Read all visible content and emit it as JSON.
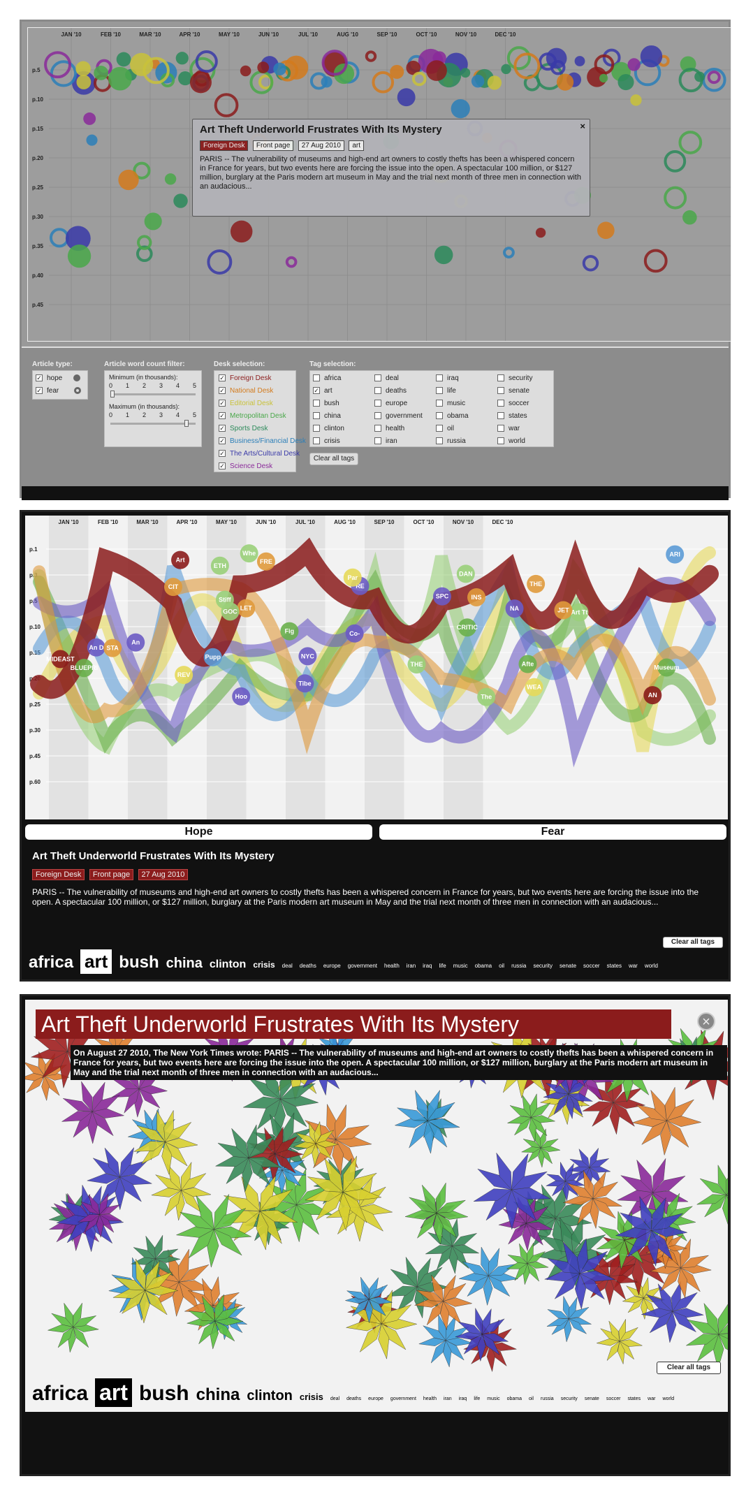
{
  "months": [
    "JAN '10",
    "FEB '10",
    "MAR '10",
    "APR '10",
    "MAY '10",
    "JUN '10",
    "JUL '10",
    "AUG '10",
    "SEP '10",
    "OCT '10",
    "NOV '10",
    "DEC '10"
  ],
  "p1_yticks": [
    "p.5",
    "p.10",
    "p.15",
    "p.20",
    "p.25",
    "p.30",
    "p.35",
    "p.40",
    "p.45"
  ],
  "p2_yticks": [
    "p.1",
    "p.3",
    "p.5",
    "p.10",
    "p.15",
    "p.20",
    "p.25",
    "p.30",
    "p.45",
    "p.60"
  ],
  "article": {
    "title": "Art Theft Underworld Frustrates With Its Mystery",
    "desk": "Foreign Desk",
    "page": "Front page",
    "date": "27 Aug 2010",
    "tag": "art",
    "close": "×",
    "snippet": "PARIS -- The vulnerability of museums and high-end art owners to costly thefts has been a whispered concern in France for years, but two events here are forcing the issue into the open. A spectacular 100 million, or $127 million, burglary at the Paris modern art museum in May and the trial next month of three men in connection with an audacious...",
    "long_snippet": "On August 27 2010, The New York Times wrote:  PARIS -- The vulnerability of museums and high-end art owners to costly thefts has been a whispered concern in France for years, but two events here are forcing the issue into the open. A spectacular 100 million, or $127 million, burglary at the Paris modern art museum in May and the trial next month of three men in connection with an audacious..."
  },
  "controls": {
    "article_type_label": "Article type:",
    "types": [
      "hope",
      "fear"
    ],
    "wordcount_label": "Article word count filter:",
    "min_label": "Minimum (in thousands):",
    "max_label": "Maximum (in thousands):",
    "ticks": [
      "0",
      "1",
      "2",
      "3",
      "4",
      "5"
    ],
    "desk_label": "Desk selection:",
    "desks": [
      {
        "name": "Foreign Desk",
        "color": "#8b1c1c"
      },
      {
        "name": "National Desk",
        "color": "#d37a1c"
      },
      {
        "name": "Editorial Desk",
        "color": "#c9c23a"
      },
      {
        "name": "Metropolitan Desk",
        "color": "#4aa84a"
      },
      {
        "name": "Sports Desk",
        "color": "#2c8a5a"
      },
      {
        "name": "Business/Financial Desk",
        "color": "#2c7fb8"
      },
      {
        "name": "The Arts/Cultural Desk",
        "color": "#3a3aa8"
      },
      {
        "name": "Science Desk",
        "color": "#8a2a9a"
      }
    ],
    "tag_label": "Tag selection:",
    "tags": [
      "africa",
      "deal",
      "iraq",
      "security",
      "art",
      "deaths",
      "life",
      "senate",
      "bush",
      "europe",
      "music",
      "soccer",
      "china",
      "government",
      "obama",
      "states",
      "clinton",
      "health",
      "oil",
      "war",
      "crisis",
      "iran",
      "russia",
      "world"
    ],
    "clear": "Clear all tags"
  },
  "hope_label": "Hope",
  "fear_label": "Fear",
  "tagcloud": [
    "africa",
    "art",
    "bush",
    "china",
    "clinton",
    "crisis",
    "deal",
    "deaths",
    "europe",
    "government",
    "health",
    "iran",
    "iraq",
    "life",
    "music",
    "obama",
    "oil",
    "russia",
    "security",
    "senate",
    "soccer",
    "states",
    "war",
    "world"
  ],
  "p2_bubble_labels": [
    "INS",
    "An D",
    "REV",
    "RE",
    "LET",
    "STA",
    "GOC",
    "ETH",
    "Par",
    "Whe",
    "Art",
    "THE",
    "Art Tt",
    "Fig",
    "CRITIC",
    "BLUEPRI",
    "MIDEAST",
    "Museum",
    "Stiff",
    "Tibe",
    "Afte",
    "NA",
    "THE",
    "Pupp",
    "DAN",
    "FRE",
    "WEA",
    "Hoo",
    "NYC",
    "Co-",
    "AN",
    "CIT",
    "The",
    "JET",
    "ARI",
    "SPC",
    "An"
  ]
}
